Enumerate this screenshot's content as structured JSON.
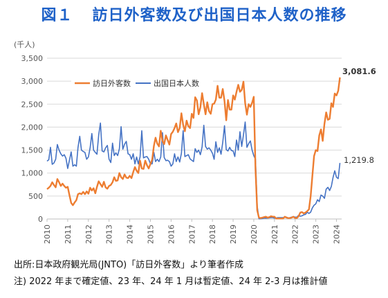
{
  "header": {
    "figure_number": "図１",
    "title": "訪日外客数及び出国日本人数の推移"
  },
  "notes": {
    "source": "出所:日本政府観光局(JNTO)「訪日外客数」より筆者作成",
    "note": "注) 2022 年まで確定値、23 年、24 年 1 月は暫定値、24 年 2-3 月は推計値"
  },
  "colors": {
    "inbound": "#ed7d31",
    "outbound": "#4472c4",
    "grid": "#d9d9d9"
  },
  "chart_data": {
    "type": "line",
    "unit_label": "(千人)",
    "ylim": [
      0,
      3500
    ],
    "y_ticks": [
      "0",
      "500",
      "1,000",
      "1,500",
      "2,000",
      "2,500",
      "3,000",
      "3,500"
    ],
    "x_tick_labels": [
      "2010",
      "2011",
      "2012",
      "2013",
      "2014",
      "2015",
      "2016",
      "2017",
      "2018",
      "2019",
      "2020",
      "2021",
      "2022",
      "2023",
      "2024"
    ],
    "x_start": "2010-01",
    "grid": true,
    "legend_position": "top-left",
    "end_labels": {
      "inbound": "3,081.6",
      "outbound": "1,219.8"
    },
    "series": [
      {
        "name": "訪日外客数",
        "key": "inbound",
        "values": [
          650,
          680,
          720,
          800,
          740,
          690,
          870,
          800,
          720,
          770,
          720,
          680,
          700,
          520,
          350,
          300,
          360,
          410,
          540,
          560,
          540,
          590,
          540,
          600,
          550,
          680,
          620,
          670,
          560,
          700,
          820,
          760,
          700,
          810,
          690,
          660,
          720,
          740,
          800,
          910,
          830,
          840,
          1000,
          910,
          870,
          970,
          900,
          890,
          940,
          890,
          1020,
          1130,
          1050,
          1000,
          1270,
          1100,
          1090,
          1270,
          1170,
          1100,
          1200,
          1290,
          1590,
          1770,
          1640,
          1580,
          1920,
          1700,
          1630,
          1820,
          1720,
          1620,
          1850,
          1900,
          1980,
          2080,
          1890,
          1980,
          2300,
          2050,
          1910,
          2140,
          2020,
          1980,
          2290,
          2200,
          2650,
          2580,
          2280,
          2430,
          2740,
          2500,
          2280,
          2540,
          2350,
          2290,
          2500,
          2510,
          2600,
          2900,
          2640,
          2640,
          2830,
          2570,
          2150,
          2590,
          2380,
          2380,
          2690,
          2600,
          2770,
          2920,
          2770,
          2810,
          2990,
          2520,
          2270,
          2500,
          2440,
          2530,
          2660,
          1090,
          190,
          30,
          20,
          30,
          40,
          50,
          30,
          40,
          60,
          50,
          50,
          10,
          10,
          10,
          10,
          10,
          50,
          30,
          20,
          20,
          30,
          50,
          20,
          20,
          60,
          140,
          150,
          120,
          140,
          170,
          210,
          500,
          930,
          1370,
          1500,
          1480,
          1820,
          1950,
          1700,
          2070,
          2320,
          2160,
          2180,
          2520,
          2440,
          2730,
          2690,
          2790,
          3082
        ]
      },
      {
        "name": "出国日本人数",
        "key": "outbound",
        "values": [
          1260,
          1290,
          1560,
          1190,
          1220,
          1300,
          1620,
          1500,
          1420,
          1370,
          1400,
          1320,
          1100,
          1280,
          1460,
          1150,
          1180,
          1150,
          1560,
          1800,
          1500,
          1470,
          1450,
          1300,
          1350,
          1550,
          1860,
          1500,
          1450,
          1410,
          1830,
          2090,
          1480,
          1460,
          1550,
          1600,
          1300,
          1230,
          1650,
          1380,
          1440,
          1380,
          1530,
          2010,
          1520,
          1630,
          1690,
          1420,
          1400,
          1300,
          1420,
          1200,
          1350,
          1200,
          1350,
          1920,
          1330,
          1350,
          1360,
          1300,
          1200,
          1200,
          1450,
          1250,
          1300,
          1250,
          1350,
          1880,
          1340,
          1270,
          1280,
          1250,
          1150,
          1200,
          1420,
          1250,
          1350,
          1240,
          1430,
          1920,
          1360,
          1380,
          1400,
          1310,
          1280,
          1250,
          1530,
          1450,
          1500,
          1400,
          1570,
          2040,
          1580,
          1520,
          1550,
          1500,
          1430,
          1300,
          1680,
          1450,
          1550,
          1410,
          1670,
          2030,
          1510,
          1480,
          1560,
          1490,
          1480,
          1360,
          1720,
          1500,
          1900,
          1580,
          1830,
          2110,
          1560,
          1640,
          1700,
          1500,
          1380,
          1300,
          280,
          5,
          5,
          10,
          20,
          20,
          20,
          25,
          30,
          30,
          20,
          20,
          30,
          30,
          30,
          30,
          40,
          40,
          20,
          30,
          40,
          50,
          40,
          40,
          80,
          60,
          70,
          90,
          100,
          150,
          120,
          150,
          240,
          300,
          330,
          420,
          380,
          520,
          500,
          450,
          650,
          690,
          620,
          710,
          900,
          1050,
          910,
          880,
          1220
        ]
      }
    ]
  }
}
